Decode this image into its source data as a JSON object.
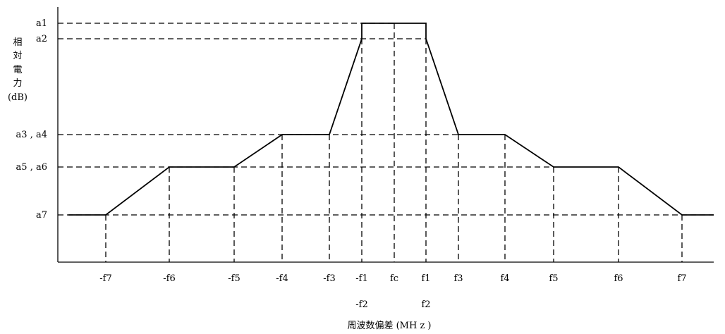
{
  "chart_data": {
    "type": "line",
    "ylabel_chars": [
      "相",
      "対",
      "電",
      "力"
    ],
    "ylabel_unit": "(dB)",
    "xlabel": "周波数偏差 (MH z )",
    "y_levels": [
      {
        "id": "a1",
        "label": "a1"
      },
      {
        "id": "a2",
        "label": "a2"
      },
      {
        "id": "a34",
        "label": "a3 , a4"
      },
      {
        "id": "a56",
        "label": "a5 , a6"
      },
      {
        "id": "a7",
        "label": "a7"
      }
    ],
    "x_ticks": [
      {
        "id": "mf7",
        "label": "-f7"
      },
      {
        "id": "mf6",
        "label": "-f6"
      },
      {
        "id": "mf5",
        "label": "-f5"
      },
      {
        "id": "mf4",
        "label": "-f4"
      },
      {
        "id": "mf3",
        "label": "-f3"
      },
      {
        "id": "mf1",
        "label": "-f1",
        "sublabel": "-f2"
      },
      {
        "id": "fc",
        "label": "fc"
      },
      {
        "id": "f1",
        "label": "f1",
        "sublabel": "f2"
      },
      {
        "id": "f3",
        "label": "f3"
      },
      {
        "id": "f4",
        "label": "f4"
      },
      {
        "id": "f5",
        "label": "f5"
      },
      {
        "id": "f6",
        "label": "f6"
      },
      {
        "id": "f7",
        "label": "f7"
      }
    ],
    "series": [
      {
        "points": [
          [
            "start",
            "a7"
          ],
          [
            "mf7",
            "a7"
          ],
          [
            "mf6",
            "a56"
          ],
          [
            "mf5",
            "a56"
          ],
          [
            "mf4",
            "a34"
          ],
          [
            "mf3",
            "a34"
          ],
          [
            "mf1",
            "a2"
          ],
          [
            "mf1",
            "a1"
          ],
          [
            "f1",
            "a1"
          ],
          [
            "f1",
            "a2"
          ],
          [
            "f3",
            "a34"
          ],
          [
            "f4",
            "a34"
          ],
          [
            "f5",
            "a56"
          ],
          [
            "f6",
            "a56"
          ],
          [
            "f7",
            "a7"
          ],
          [
            "end",
            "a7"
          ]
        ]
      }
    ]
  }
}
